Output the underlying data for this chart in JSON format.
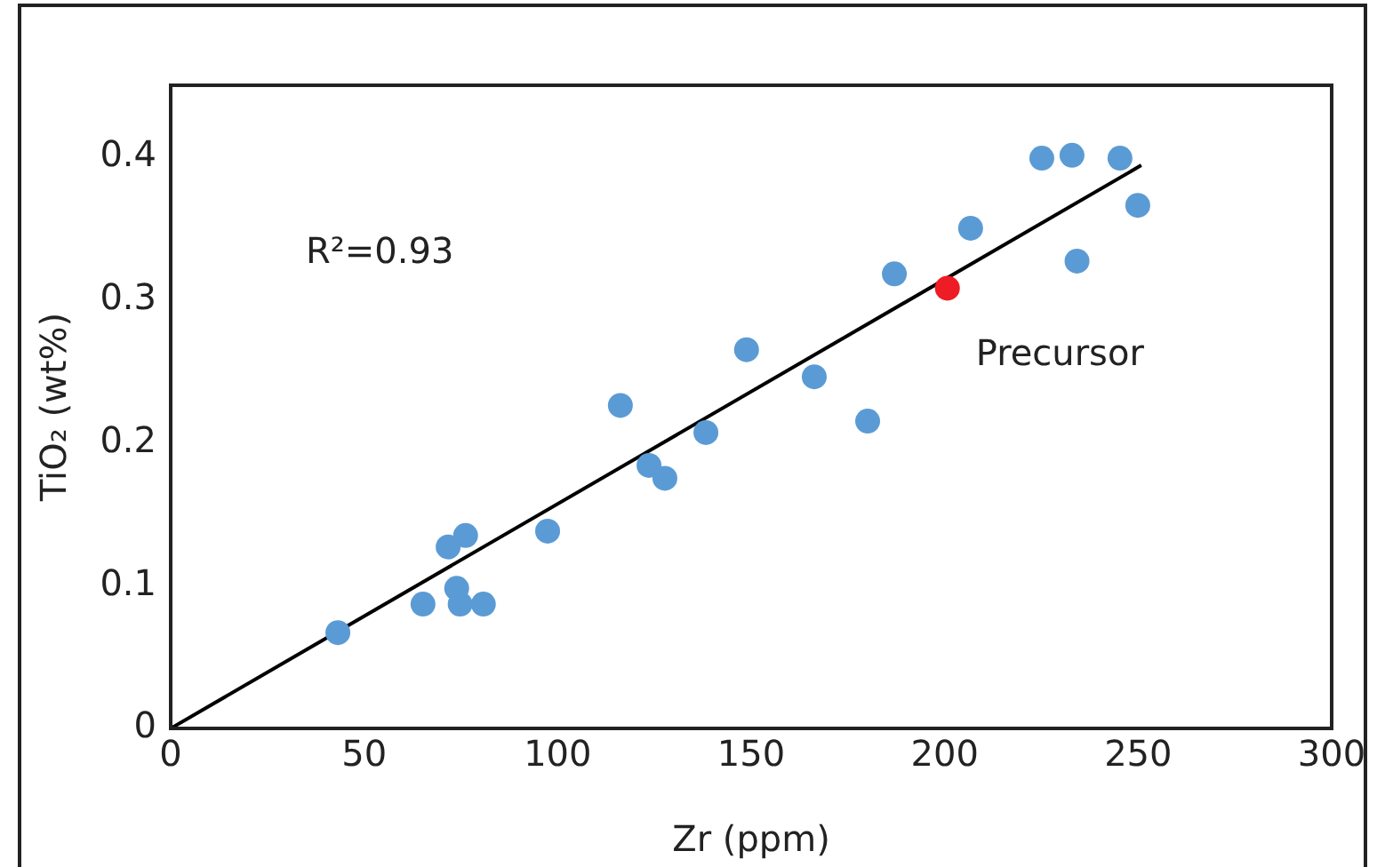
{
  "chart_data": {
    "type": "scatter",
    "xlabel": "Zr (ppm)",
    "ylabel": "TiO₂ (wt%)",
    "xlim": [
      0,
      300
    ],
    "xticks": [
      0,
      50,
      100,
      150,
      200,
      250,
      300
    ],
    "ylim": [
      0,
      0.45
    ],
    "yticks": [
      0,
      0.1,
      0.2,
      0.3,
      0.4
    ],
    "grid": false,
    "legend": false,
    "marker": "circle",
    "annotations": [
      "R²=0.93"
    ],
    "series": [
      {
        "color": "#5b9bd5",
        "x": [
          43.2,
          65.2,
          71.7,
          76.2,
          73.9,
          74.8,
          80.8,
          97.4,
          116.2,
          123.6,
          127.7,
          138.3,
          148.8,
          166.3,
          180.1,
          187,
          206.7,
          225.1,
          232.9,
          234.2,
          245.3,
          249.9
        ],
        "values": [
          0.067,
          0.087,
          0.127,
          0.135,
          0.098,
          0.087,
          0.087,
          0.138,
          0.226,
          0.184,
          0.175,
          0.207,
          0.265,
          0.246,
          0.215,
          0.318,
          0.35,
          0.399,
          0.401,
          0.327,
          0.399,
          0.366
        ]
      },
      {
        "name": "Precursor",
        "color": "#ee1c25",
        "x": [
          200.7
        ],
        "values": [
          0.308
        ]
      },
      {
        "type": "line",
        "marker": "none",
        "color": "#000000",
        "x": [
          0,
          250.8
        ],
        "values": [
          0,
          0.394
        ]
      }
    ]
  }
}
